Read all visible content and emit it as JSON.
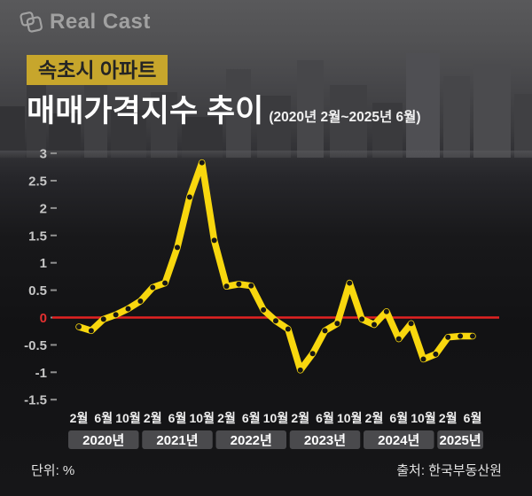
{
  "logo": {
    "text": "Real Cast"
  },
  "header": {
    "badge": "속초시 아파트",
    "title": "매매가격지수 추이",
    "subtitle": "(2020년 2월~2025년 6월)"
  },
  "footer": {
    "unit": "단위: %",
    "source": "출처: 한국부동산원"
  },
  "colors": {
    "series_line": "#f8d70e",
    "marker": "#161616",
    "zero_line": "#e32222",
    "badge_bg": "#c7a62c",
    "axis_text": "#c6c6c6",
    "zero_label": "#e33030",
    "month_text": "#ededed",
    "year_box_bg": "#4a4a4d",
    "year_text": "#ffffff"
  },
  "chart_data": {
    "type": "line",
    "title": "속초시 아파트 매매가격지수 추이",
    "period": "2020년 2월~2025년 6월",
    "unit": "%",
    "grid": false,
    "legend_position": "none",
    "ylim": [
      -1.5,
      3
    ],
    "y_ticks": [
      3,
      2.5,
      2,
      1.5,
      1,
      0.5,
      0,
      -0.5,
      -1,
      -1.5
    ],
    "zero_line": true,
    "x": [
      "2020-02",
      "2020-04",
      "2020-06",
      "2020-08",
      "2020-10",
      "2020-12",
      "2021-02",
      "2021-04",
      "2021-06",
      "2021-08",
      "2021-10",
      "2021-12",
      "2022-02",
      "2022-04",
      "2022-06",
      "2022-08",
      "2022-10",
      "2022-12",
      "2023-02",
      "2023-04",
      "2023-06",
      "2023-08",
      "2023-10",
      "2023-12",
      "2024-02",
      "2024-04",
      "2024-06",
      "2024-08",
      "2024-10",
      "2024-12",
      "2025-02",
      "2025-04",
      "2025-06"
    ],
    "values": [
      -0.17,
      -0.24,
      -0.03,
      0.05,
      0.16,
      0.3,
      0.55,
      0.63,
      1.28,
      2.2,
      2.83,
      1.41,
      0.57,
      0.61,
      0.58,
      0.14,
      -0.06,
      -0.21,
      -0.96,
      -0.66,
      -0.24,
      -0.11,
      0.63,
      -0.03,
      -0.13,
      0.11,
      -0.39,
      -0.11,
      -0.76,
      -0.67,
      -0.36,
      -0.34,
      -0.34
    ],
    "x_tick_labels": [
      "2월",
      "6월",
      "10월",
      "2월",
      "6월",
      "10월",
      "2월",
      "6월",
      "10월",
      "2월",
      "6월",
      "10월",
      "2월",
      "6월",
      "10월",
      "2월",
      "6월"
    ],
    "year_labels": [
      "2020년",
      "2021년",
      "2022년",
      "2023년",
      "2024년",
      "2025년"
    ]
  }
}
